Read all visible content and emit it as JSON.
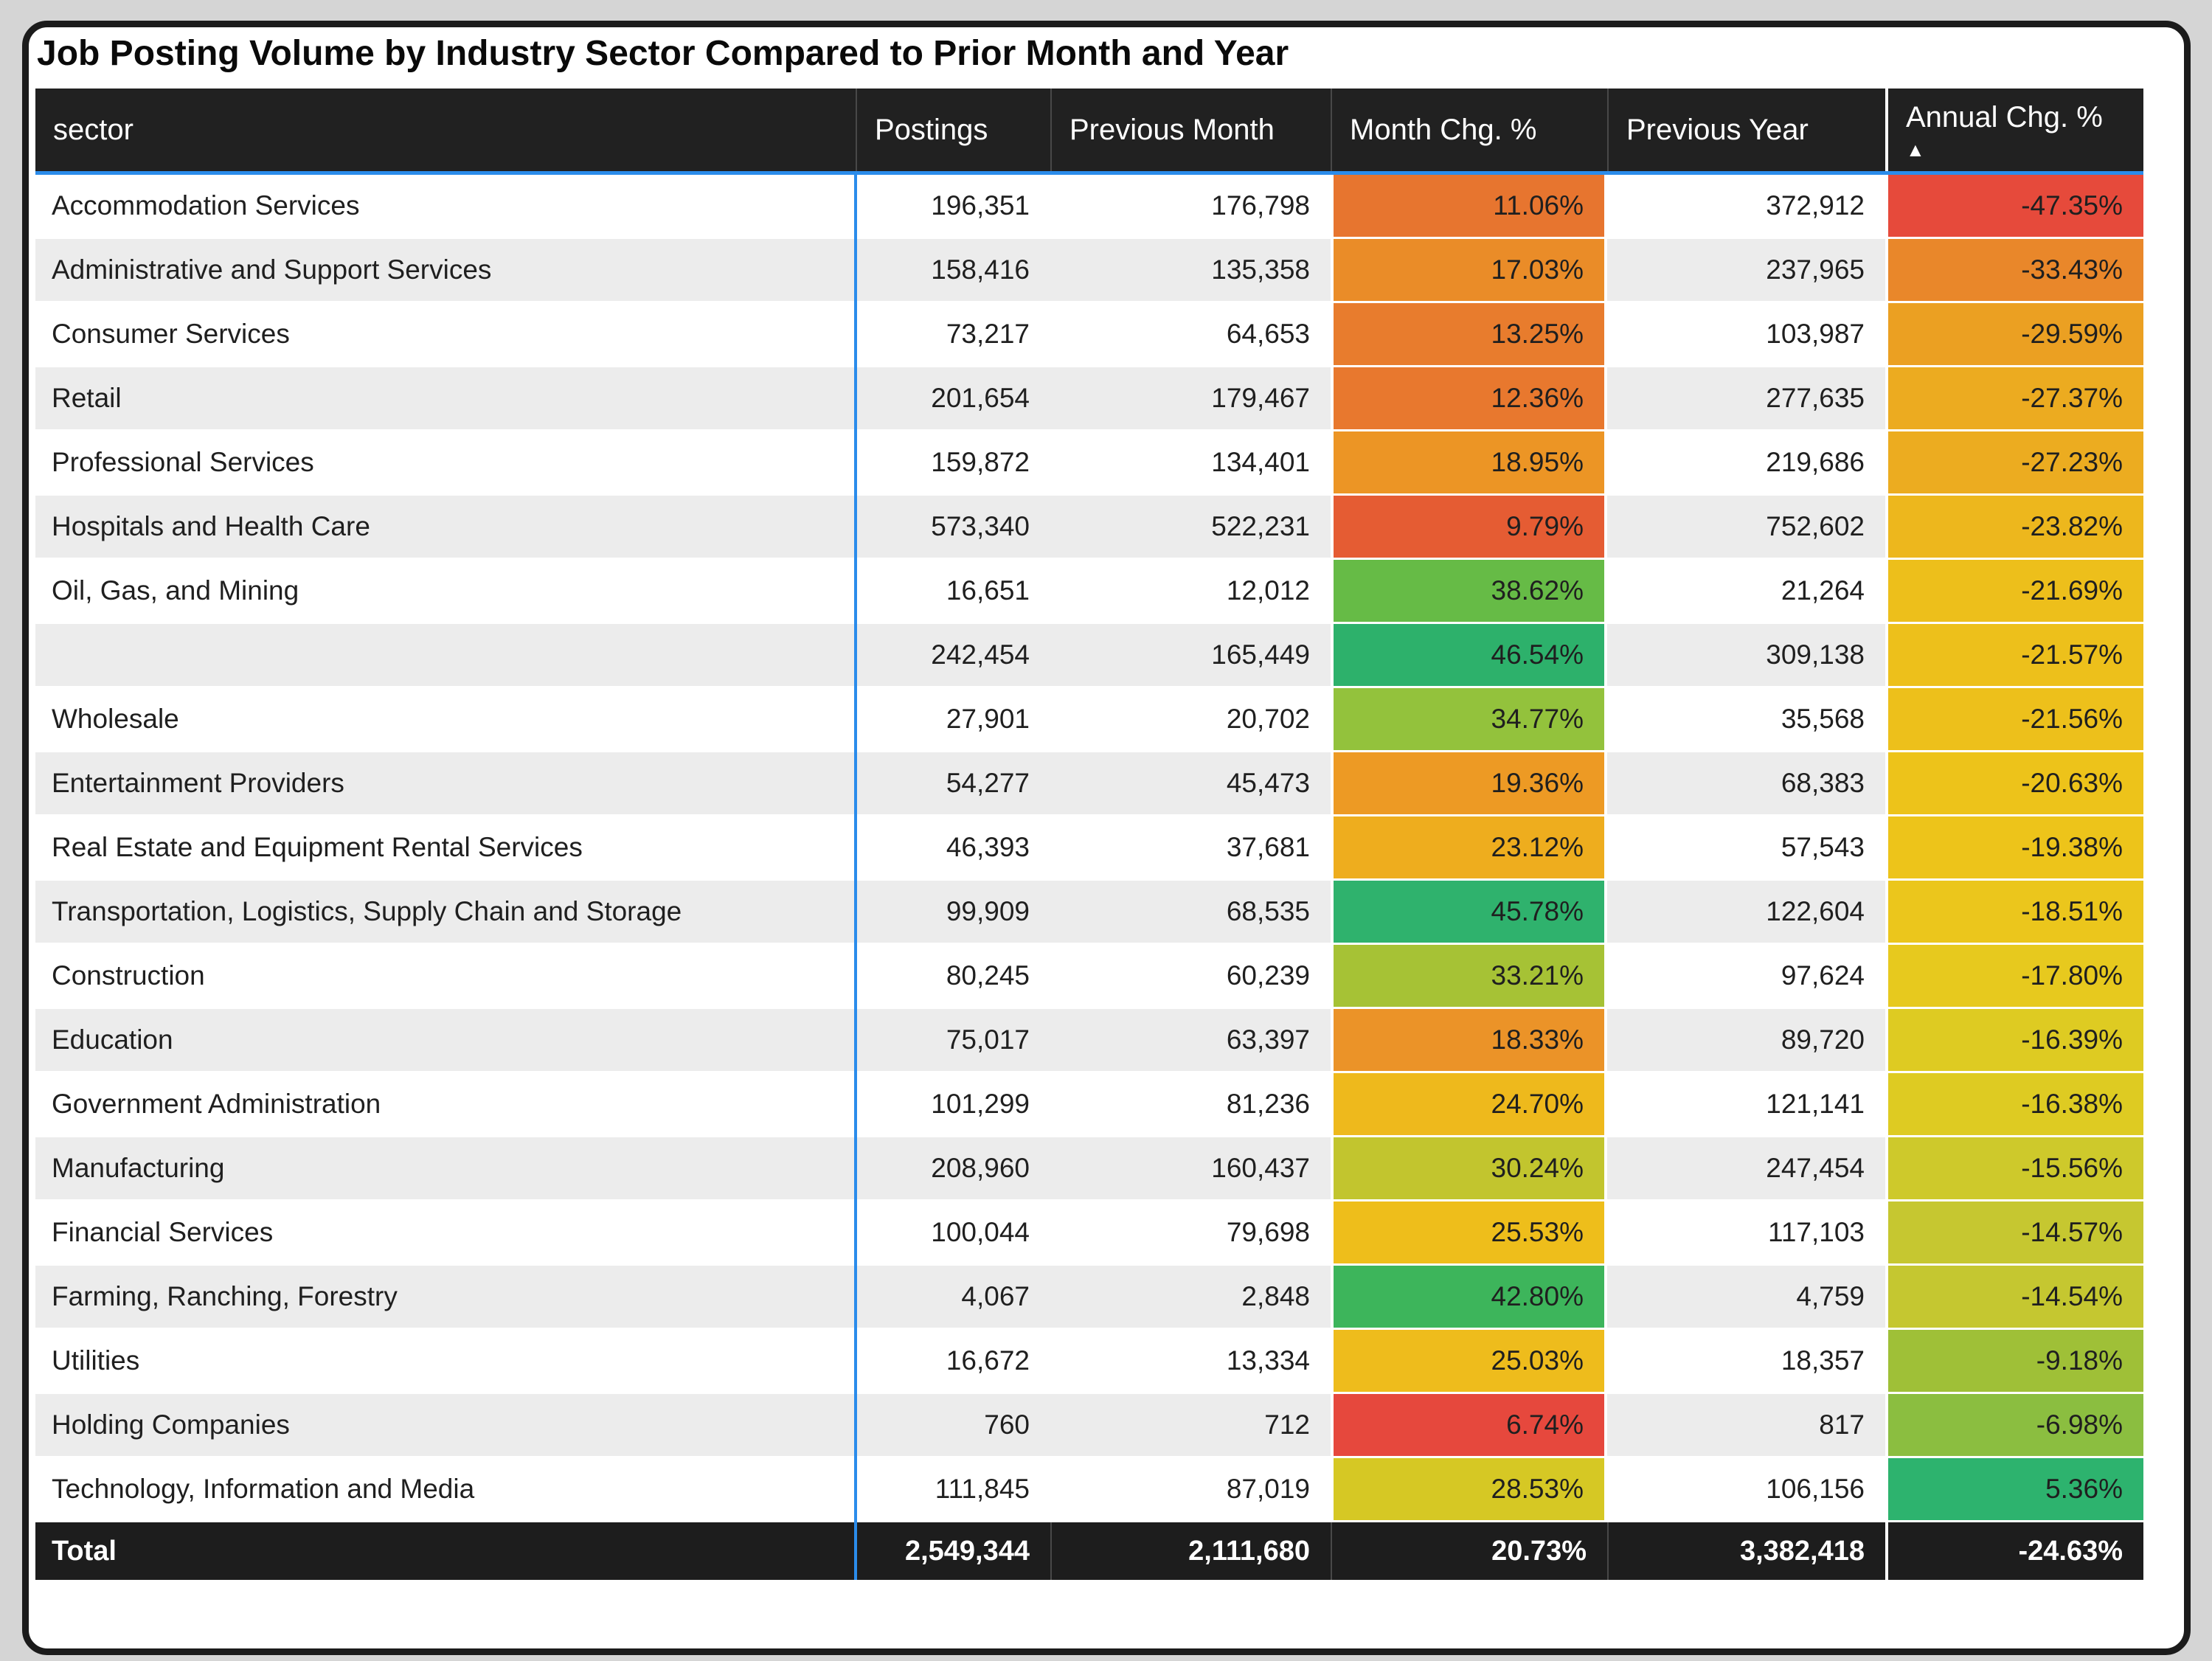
{
  "chart_data": {
    "type": "table",
    "title": "Job Posting Volume by Industry Sector Compared to Prior Month and Year",
    "columns": [
      "sector",
      "Postings",
      "Previous Month",
      "Month Chg. %",
      "Previous Year",
      "Annual Chg. %"
    ],
    "sort": {
      "column": "Annual Chg. %",
      "direction": "ascending",
      "icon": "▲"
    },
    "rows": [
      {
        "sector": "Accommodation Services",
        "postings": "196,351",
        "previous_month": "176,798",
        "month_chg": "11.06%",
        "month_chg_color": "#e7752f",
        "previous_year": "372,912",
        "annual_chg": "-47.35%",
        "annual_chg_color": "#e64a3b"
      },
      {
        "sector": "Administrative and Support Services",
        "postings": "158,416",
        "previous_month": "135,358",
        "month_chg": "17.03%",
        "month_chg_color": "#ea8c28",
        "previous_year": "237,965",
        "annual_chg": "-33.43%",
        "annual_chg_color": "#e9872a"
      },
      {
        "sector": "Consumer Services",
        "postings": "73,217",
        "previous_month": "64,653",
        "month_chg": "13.25%",
        "month_chg_color": "#e87c2d",
        "previous_year": "103,987",
        "annual_chg": "-29.59%",
        "annual_chg_color": "#eba022"
      },
      {
        "sector": "Retail",
        "postings": "201,654",
        "previous_month": "179,467",
        "month_chg": "12.36%",
        "month_chg_color": "#e8782e",
        "previous_year": "277,635",
        "annual_chg": "-27.37%",
        "annual_chg_color": "#ecab20"
      },
      {
        "sector": "Professional Services",
        "postings": "159,872",
        "previous_month": "134,401",
        "month_chg": "18.95%",
        "month_chg_color": "#ec9525",
        "previous_year": "219,686",
        "annual_chg": "-27.23%",
        "annual_chg_color": "#ecac20"
      },
      {
        "sector": "Hospitals and Health Care",
        "postings": "573,340",
        "previous_month": "522,231",
        "month_chg": "9.79%",
        "month_chg_color": "#e55c33",
        "previous_year": "752,602",
        "annual_chg": "-23.82%",
        "annual_chg_color": "#edb71d"
      },
      {
        "sector": "Oil, Gas, and Mining",
        "postings": "16,651",
        "previous_month": "12,012",
        "month_chg": "38.62%",
        "month_chg_color": "#66bb46",
        "previous_year": "21,264",
        "annual_chg": "-21.69%",
        "annual_chg_color": "#edbf1b"
      },
      {
        "sector": "",
        "postings": "242,454",
        "previous_month": "165,449",
        "month_chg": "46.54%",
        "month_chg_color": "#2db16b",
        "previous_year": "309,138",
        "annual_chg": "-21.57%",
        "annual_chg_color": "#edc01b"
      },
      {
        "sector": "Wholesale",
        "postings": "27,901",
        "previous_month": "20,702",
        "month_chg": "34.77%",
        "month_chg_color": "#93c23c",
        "previous_year": "35,568",
        "annual_chg": "-21.56%",
        "annual_chg_color": "#edc01b"
      },
      {
        "sector": "Entertainment Providers",
        "postings": "54,277",
        "previous_month": "45,473",
        "month_chg": "19.36%",
        "month_chg_color": "#ed9a24",
        "previous_year": "68,383",
        "annual_chg": "-20.63%",
        "annual_chg_color": "#edc31a"
      },
      {
        "sector": "Real Estate and Equipment Rental Services",
        "postings": "46,393",
        "previous_month": "37,681",
        "month_chg": "23.12%",
        "month_chg_color": "#eead1e",
        "previous_year": "57,543",
        "annual_chg": "-19.38%",
        "annual_chg_color": "#edc41a"
      },
      {
        "sector": "Transportation, Logistics, Supply Chain and Storage",
        "postings": "99,909",
        "previous_month": "68,535",
        "month_chg": "45.78%",
        "month_chg_color": "#2fb26d",
        "previous_year": "122,604",
        "annual_chg": "-18.51%",
        "annual_chg_color": "#ebc61c"
      },
      {
        "sector": "Construction",
        "postings": "80,245",
        "previous_month": "60,239",
        "month_chg": "33.21%",
        "month_chg_color": "#a6c235",
        "previous_year": "97,624",
        "annual_chg": "-17.80%",
        "annual_chg_color": "#e7c91e"
      },
      {
        "sector": "Education",
        "postings": "75,017",
        "previous_month": "63,397",
        "month_chg": "18.33%",
        "month_chg_color": "#eb9328",
        "previous_year": "89,720",
        "annual_chg": "-16.39%",
        "annual_chg_color": "#decb22"
      },
      {
        "sector": "Government Administration",
        "postings": "101,299",
        "previous_month": "81,236",
        "month_chg": "24.70%",
        "month_chg_color": "#eeb91c",
        "previous_year": "121,141",
        "annual_chg": "-16.38%",
        "annual_chg_color": "#decb22"
      },
      {
        "sector": "Manufacturing",
        "postings": "208,960",
        "previous_month": "160,437",
        "month_chg": "30.24%",
        "month_chg_color": "#c2c52e",
        "previous_year": "247,454",
        "annual_chg": "-15.56%",
        "annual_chg_color": "#cec92b"
      },
      {
        "sector": "Financial Services",
        "postings": "100,044",
        "previous_month": "79,698",
        "month_chg": "25.53%",
        "month_chg_color": "#eebe1b",
        "previous_year": "117,103",
        "annual_chg": "-14.57%",
        "annual_chg_color": "#c6c730"
      },
      {
        "sector": "Farming, Ranching, Forestry",
        "postings": "4,067",
        "previous_month": "2,848",
        "month_chg": "42.80%",
        "month_chg_color": "#3db55b",
        "previous_year": "4,759",
        "annual_chg": "-14.54%",
        "annual_chg_color": "#c5c730"
      },
      {
        "sector": "Utilities",
        "postings": "16,672",
        "previous_month": "13,334",
        "month_chg": "25.03%",
        "month_chg_color": "#eebc1c",
        "previous_year": "18,357",
        "annual_chg": "-9.18%",
        "annual_chg_color": "#9fc037"
      },
      {
        "sector": "Holding Companies",
        "postings": "760",
        "previous_month": "712",
        "month_chg": "6.74%",
        "month_chg_color": "#e6483d",
        "previous_year": "817",
        "annual_chg": "-6.98%",
        "annual_chg_color": "#8bbe40"
      },
      {
        "sector": "Technology, Information and Media",
        "postings": "111,845",
        "previous_month": "87,019",
        "month_chg": "28.53%",
        "month_chg_color": "#d6c824",
        "previous_year": "106,156",
        "annual_chg": "5.36%",
        "annual_chg_color": "#2db36e"
      }
    ],
    "total": {
      "sector": "Total",
      "postings": "2,549,344",
      "previous_month": "2,111,680",
      "month_chg": "20.73%",
      "previous_year": "3,382,418",
      "annual_chg": "-24.63%"
    }
  },
  "colors": {
    "page_background": "#d5d5d5",
    "card_border": "#1b1b1b",
    "header_background": "#212121",
    "header_text": "#ffffff",
    "accent_blue": "#2b8ceb",
    "alt_row_background": "#ececec",
    "body_text": "#1f1f1f",
    "total_background": "#1d1d1d",
    "total_text": "#ffffff"
  }
}
